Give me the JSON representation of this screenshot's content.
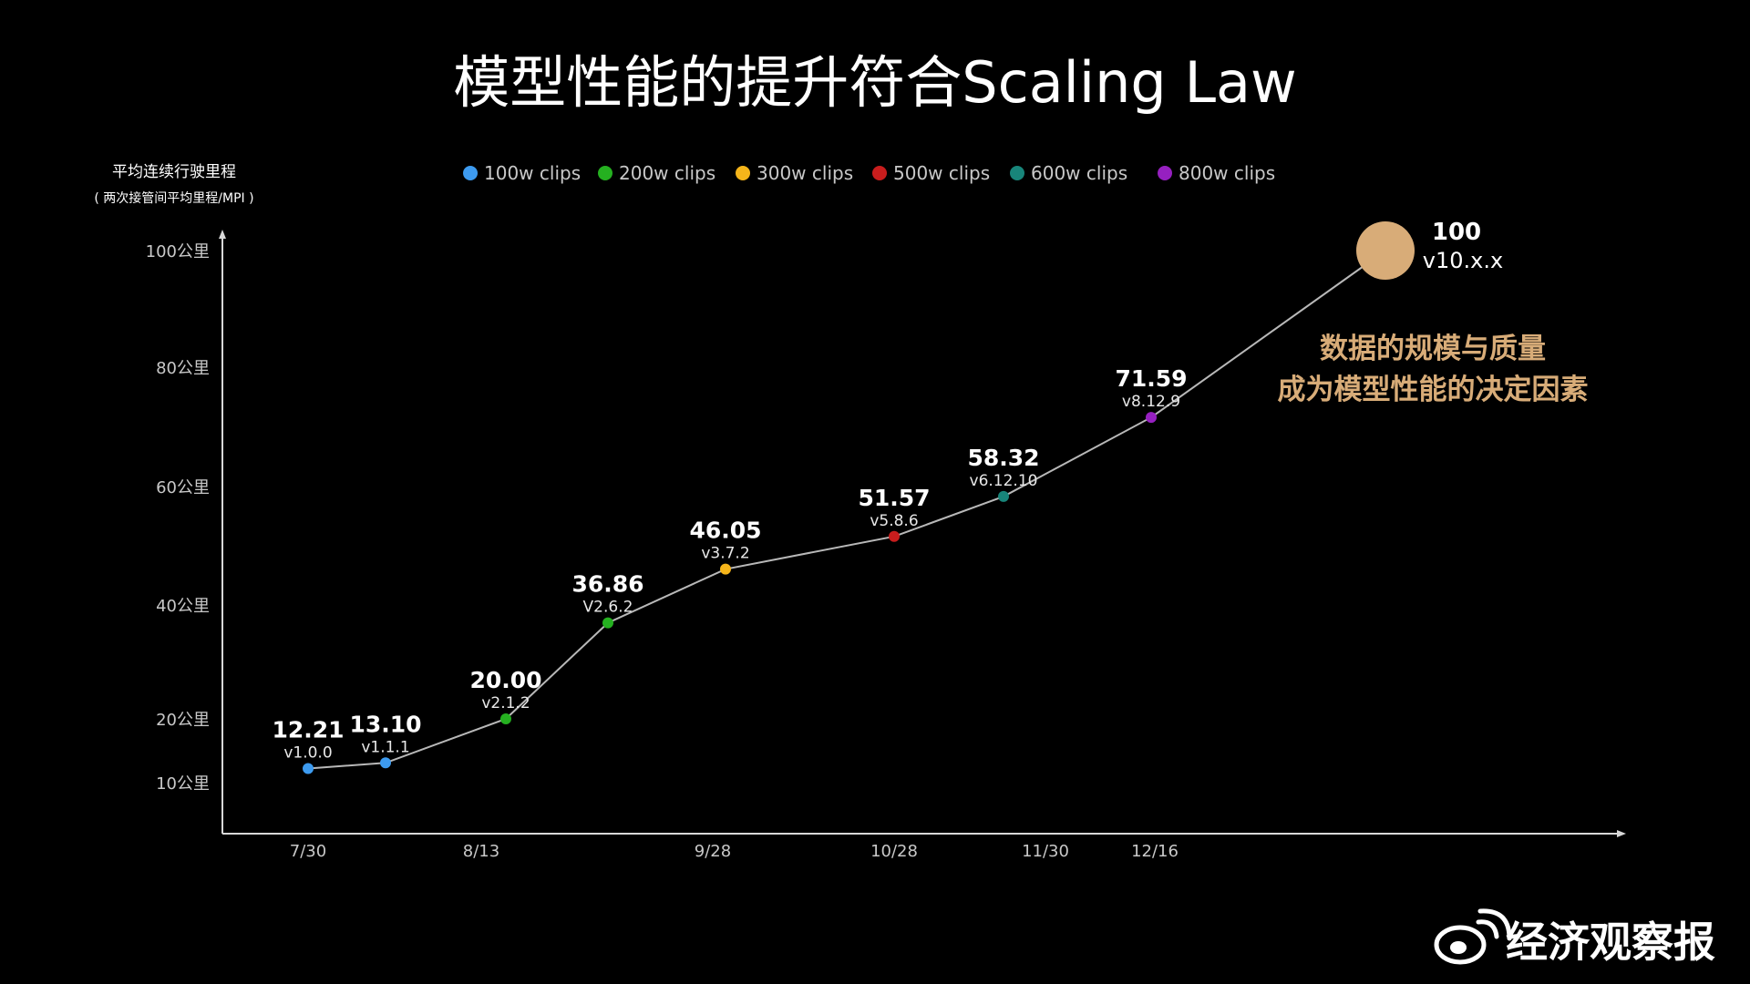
{
  "title": "模型性能的提升符合Scaling Law",
  "colors": {
    "background": "#000000",
    "line": "#b8b8b8",
    "axis": "#d8d8d8",
    "highlight": "#d8ac78",
    "100w": "#3d9bf0",
    "200w": "#25b020",
    "300w": "#f5b51a",
    "500w": "#c81d1d",
    "600w": "#18857a",
    "800w": "#9620c0"
  },
  "legend": [
    {
      "label": "100w clips",
      "color": "#3d9bf0"
    },
    {
      "label": "200w clips",
      "color": "#25b020"
    },
    {
      "label": "300w clips",
      "color": "#f5b51a"
    },
    {
      "label": "500w clips",
      "color": "#c81d1d"
    },
    {
      "label": "600w clips",
      "color": "#18857a"
    },
    {
      "label": "800w clips",
      "color": "#9620c0"
    }
  ],
  "annotation": [
    "数据的规模与质量",
    "成为模型性能的决定因素"
  ],
  "watermark": "经济观察报",
  "chart_data": {
    "type": "line",
    "title": "模型性能的提升符合Scaling Law",
    "ylabel": "平均连续行驶里程",
    "ylabel_sub": "( 两次接管间平均里程/MPI )",
    "yticks": [
      {
        "value": 10,
        "label": "10公里"
      },
      {
        "value": 20,
        "label": "20公里"
      },
      {
        "value": 40,
        "label": "40公里"
      },
      {
        "value": 60,
        "label": "60公里"
      },
      {
        "value": 80,
        "label": "80公里"
      },
      {
        "value": 100,
        "label": "100公里"
      }
    ],
    "xticks": [
      "7/30",
      "8/13",
      "9/28",
      "10/28",
      "11/30",
      "12/16"
    ],
    "ylim": [
      0,
      100
    ],
    "grid": false,
    "legend_position": "top",
    "points": [
      {
        "value": 12.21,
        "label": "12.21",
        "version": "v1.0.0",
        "series": "100w clips",
        "x_tick": "7/30",
        "color": "#3d9bf0"
      },
      {
        "value": 13.1,
        "label": "13.10",
        "version": "v1.1.1",
        "series": "100w clips",
        "color": "#3d9bf0"
      },
      {
        "value": 20.0,
        "label": "20.00",
        "version": "v2.1.2",
        "series": "200w clips",
        "x_tick": "8/13",
        "color": "#25b020"
      },
      {
        "value": 36.86,
        "label": "36.86",
        "version": "V2.6.2",
        "series": "200w clips",
        "color": "#25b020"
      },
      {
        "value": 46.05,
        "label": "46.05",
        "version": "v3.7.2",
        "series": "300w clips",
        "x_tick": "9/28",
        "color": "#f5b51a"
      },
      {
        "value": 51.57,
        "label": "51.57",
        "version": "v5.8.6",
        "series": "500w clips",
        "x_tick": "10/28",
        "color": "#c81d1d"
      },
      {
        "value": 58.32,
        "label": "58.32",
        "version": "v6.12.10",
        "series": "600w clips",
        "x_tick": "11/30",
        "color": "#18857a"
      },
      {
        "value": 71.59,
        "label": "71.59",
        "version": "v8.12.9",
        "series": "800w clips",
        "x_tick": "12/16",
        "color": "#9620c0"
      },
      {
        "value": 100,
        "label": "100",
        "version": "v10.x.x",
        "series": null,
        "color": "#d8ac78"
      }
    ]
  }
}
